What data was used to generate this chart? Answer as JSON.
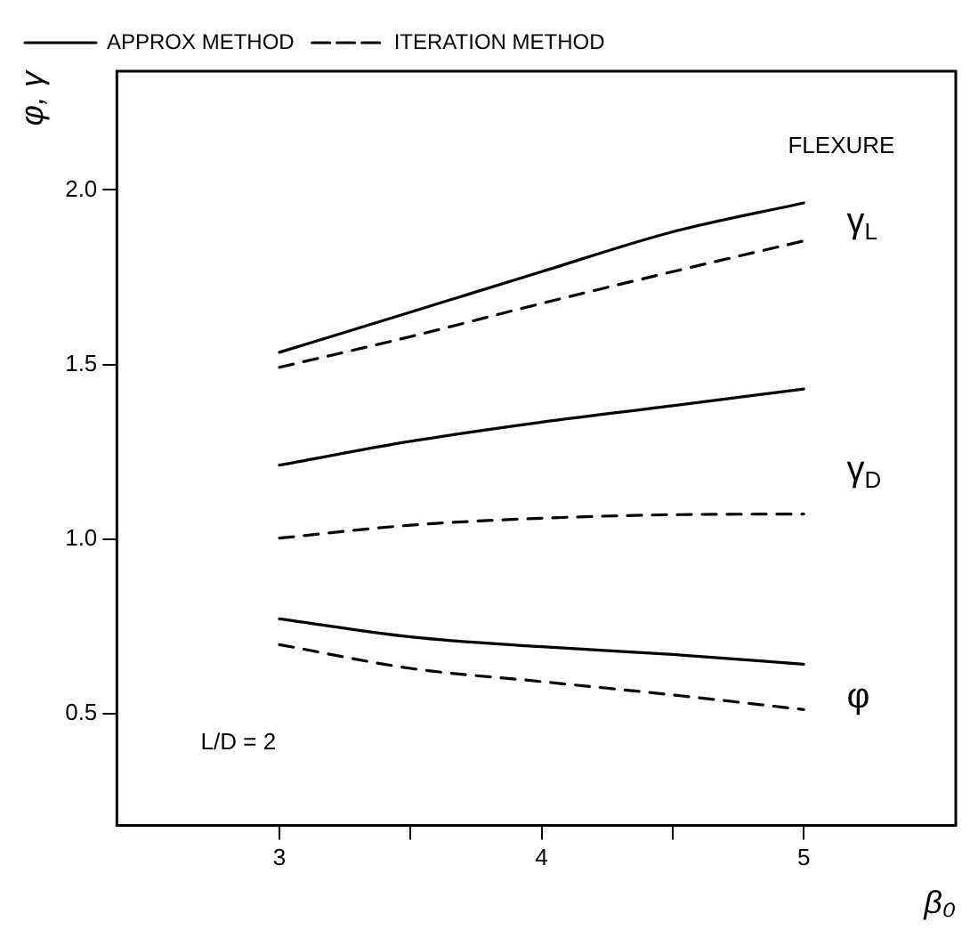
{
  "chart_data": {
    "type": "line",
    "xlabel": "β₀",
    "ylabel": "φ, γ",
    "x": [
      3,
      3.5,
      4,
      4.5,
      5
    ],
    "series": [
      {
        "name": "APPROX METHOD",
        "color": "#000000",
        "line_style": "solid",
        "values": [
          1.535,
          1.65,
          1.766,
          1.88,
          1.963
        ]
      },
      {
        "name": "ITERATION METHOD",
        "color": "#000000",
        "line_style": "dashed",
        "values": [
          1.492,
          1.58,
          1.675,
          1.766,
          1.854
        ]
      },
      {
        "color": "#000000",
        "line_style": "solid",
        "values": [
          1.212,
          1.28,
          1.335,
          1.382,
          1.43
        ]
      },
      {
        "color": "#000000",
        "line_style": "dashed",
        "values": [
          1.003,
          1.04,
          1.06,
          1.07,
          1.072
        ]
      },
      {
        "color": "#000000",
        "line_style": "solid",
        "values": [
          0.772,
          0.72,
          0.692,
          0.67,
          0.642
        ]
      },
      {
        "color": "#000000",
        "line_style": "dashed",
        "values": [
          0.698,
          0.63,
          0.592,
          0.554,
          0.512
        ]
      }
    ],
    "xlim": [
      2.38,
      5.58
    ],
    "ylim": [
      0.18,
      2.34
    ],
    "xticks": [
      3,
      {
        "value": 3.5,
        "label": null
      },
      4,
      {
        "value": 4.5,
        "label": null
      },
      5
    ],
    "yticks": [
      0.5,
      {
        "value": 1,
        "label": "1.0"
      },
      1.5,
      {
        "value": 2,
        "label": "2.0"
      }
    ],
    "annotations": [
      "γ$_{L}$",
      "γ$_{D}$",
      "φ",
      "FLEXURE",
      "L/D = 2"
    ],
    "legend": "top left",
    "grid": false,
    "marker": "none"
  }
}
